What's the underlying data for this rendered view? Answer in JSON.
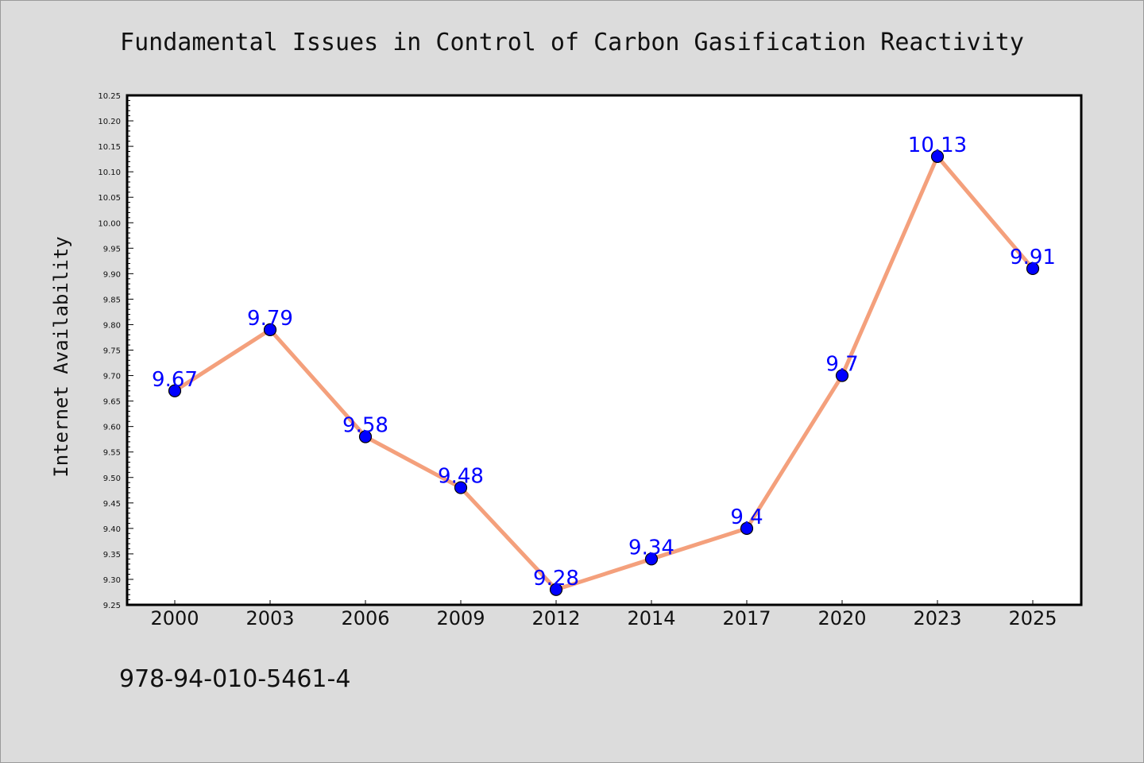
{
  "chart_data": {
    "type": "line",
    "title": "Fundamental Issues in Control of Carbon Gasification Reactivity",
    "xlabel": "",
    "ylabel": "Internet Availability",
    "categories": [
      "2000",
      "2003",
      "2006",
      "2009",
      "2012",
      "2014",
      "2017",
      "2020",
      "2023",
      "2025"
    ],
    "values": [
      9.67,
      9.79,
      9.58,
      9.48,
      9.28,
      9.34,
      9.4,
      9.7,
      10.13,
      9.91
    ],
    "data_labels": [
      "9.67",
      "9.79",
      "9.58",
      "9.48",
      "9.28",
      "9.34",
      "9.4",
      "9.7",
      "10.13",
      "9.91"
    ],
    "ylim": [
      9.25,
      10.25
    ],
    "yticks": [
      "9.25",
      "9.30",
      "9.35",
      "9.40",
      "9.45",
      "9.50",
      "9.55",
      "9.60",
      "9.65",
      "9.70",
      "9.75",
      "9.80",
      "9.85",
      "9.90",
      "9.95",
      "10.00",
      "10.05",
      "10.10",
      "10.15",
      "10.20",
      "10.25"
    ],
    "grid": false,
    "colors": {
      "line": "#f4a07c",
      "marker": "#0000ff",
      "label": "#0000ff"
    }
  },
  "footer": {
    "isbn": "978-94-010-5461-4"
  }
}
